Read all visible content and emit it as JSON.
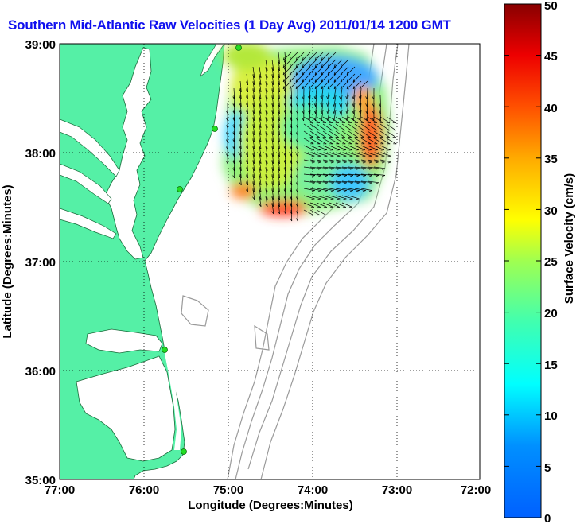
{
  "title": "Southern Mid-Atlantic Raw Velocities (1 Day Avg) 2011/01/14 1200 GMT",
  "x_axis": {
    "label": "Longitude (Degrees:Minutes)",
    "ticks": [
      "77:00",
      "76:00",
      "75:00",
      "74:00",
      "73:00",
      "72:00"
    ]
  },
  "y_axis": {
    "label": "Latitude (Degrees:Minutes)",
    "ticks": [
      "39:00",
      "38:00",
      "37:00",
      "36:00",
      "35:00"
    ]
  },
  "colorbar": {
    "label": "Surface Velocity (cm/s)",
    "ticks": [
      "0",
      "5",
      "10",
      "15",
      "20",
      "25",
      "30",
      "35",
      "40",
      "45",
      "50"
    ],
    "min": 0,
    "max": 50,
    "colormap": "jet"
  },
  "map": {
    "lon_range": [
      -77,
      -72
    ],
    "lat_range": [
      35,
      39
    ],
    "land_color": "#55f0a6",
    "grid": "dotted",
    "bathymetry_color": "#999999",
    "station_color": "#22dd22"
  }
}
